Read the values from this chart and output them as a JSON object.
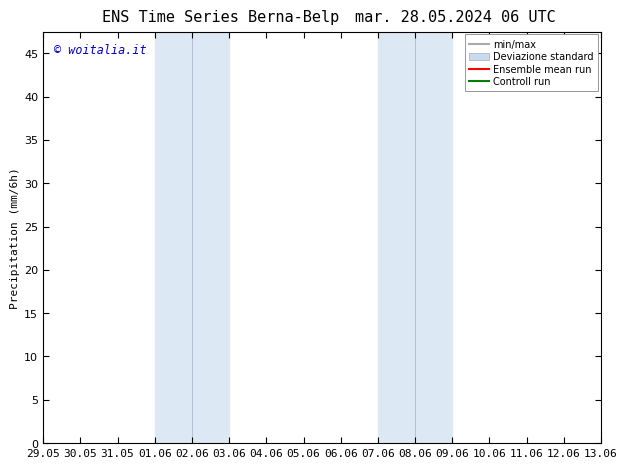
{
  "title_left": "ENS Time Series Berna-Belp",
  "title_right": "mar. 28.05.2024 06 UTC",
  "ylabel": "Precipitation (mm/6h)",
  "xlabel_ticks": [
    "29.05",
    "30.05",
    "31.05",
    "01.06",
    "02.06",
    "03.06",
    "04.06",
    "05.06",
    "06.06",
    "07.06",
    "08.06",
    "09.06",
    "10.06",
    "11.06",
    "12.06",
    "13.06"
  ],
  "yticks": [
    0,
    5,
    10,
    15,
    20,
    25,
    30,
    35,
    40,
    45
  ],
  "ylim": [
    0,
    47.5
  ],
  "xlim_start": 0,
  "xlim_end": 15,
  "shaded_regions": [
    {
      "x_start": 3,
      "x_end": 5,
      "color": "#dce9f5"
    },
    {
      "x_start": 9,
      "x_end": 11,
      "color": "#dce9f5"
    }
  ],
  "shaded_dividers": [
    4,
    10
  ],
  "watermark_text": "© woitalia.it",
  "watermark_color": "#0000cc",
  "legend_entries": [
    {
      "label": "min/max",
      "color": "#aaaaaa",
      "style": "line"
    },
    {
      "label": "Deviazione standard",
      "color": "#c8dcf0",
      "style": "rect"
    },
    {
      "label": "Ensemble mean run",
      "color": "#ff0000",
      "style": "line"
    },
    {
      "label": "Controll run",
      "color": "#008000",
      "style": "line"
    }
  ],
  "background_color": "#ffffff",
  "plot_bg_color": "#ffffff",
  "tick_fontsize": 8,
  "title_fontsize": 11,
  "ylabel_fontsize": 8
}
